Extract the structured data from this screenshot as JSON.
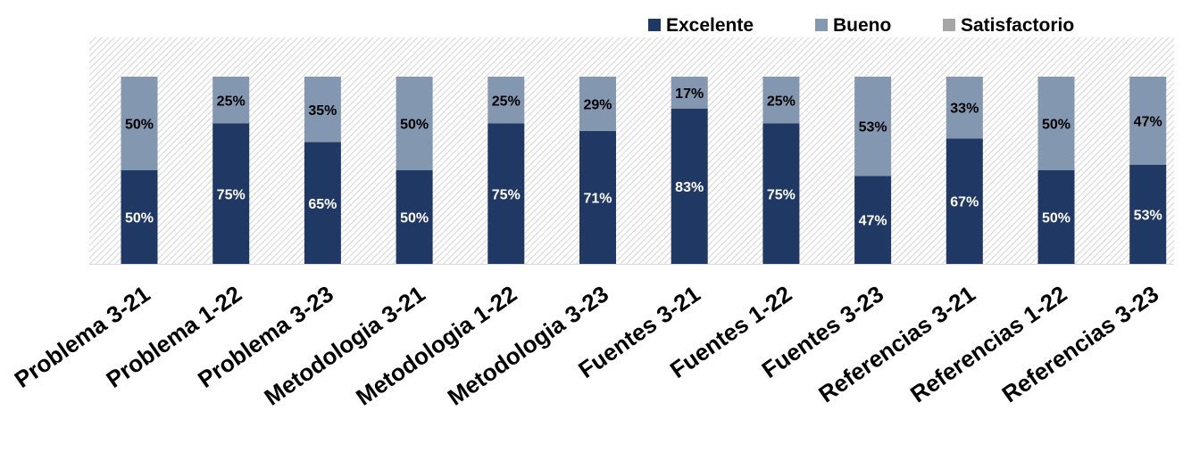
{
  "chart_data": {
    "type": "bar",
    "stacked": true,
    "percent": true,
    "categories": [
      "Problema 3-21",
      "Problema 1-22",
      "Problema 3-23",
      "Metodologia 3-21",
      "Metodologia 1-22",
      "Metodologia 3-23",
      "Fuentes 3-21",
      "Fuentes 1-22",
      "Fuentes 3-23",
      "Referencias 3-21",
      "Referencias 1-22",
      "Referencias 3-23"
    ],
    "series": [
      {
        "name": "Excelente",
        "color": "#203864",
        "values": [
          50,
          75,
          65,
          50,
          75,
          71,
          83,
          75,
          47,
          67,
          50,
          53
        ],
        "labels": [
          "50%",
          "75%",
          "65%",
          "50%",
          "75%",
          "71%",
          "83%",
          "75%",
          "47%",
          "67%",
          "50%",
          "53%"
        ]
      },
      {
        "name": "Bueno",
        "color": "#8497B0",
        "values": [
          50,
          25,
          35,
          50,
          25,
          29,
          17,
          25,
          53,
          33,
          50,
          47
        ],
        "labels": [
          "50%",
          "25%",
          "35%",
          "50%",
          "25%",
          "29%",
          "17%",
          "25%",
          "53%",
          "33%",
          "50%",
          "47%"
        ]
      },
      {
        "name": "Satisfactorio",
        "color": "#A5A5A5",
        "values": [
          0,
          0,
          0,
          0,
          0,
          0,
          0,
          0,
          0,
          0,
          0,
          0
        ],
        "labels": []
      }
    ],
    "ylim": [
      0,
      100
    ],
    "grid": false,
    "legend_position": "top-right",
    "plot_background": "hatched light gray",
    "xlabel": "",
    "ylabel": "",
    "title": ""
  }
}
